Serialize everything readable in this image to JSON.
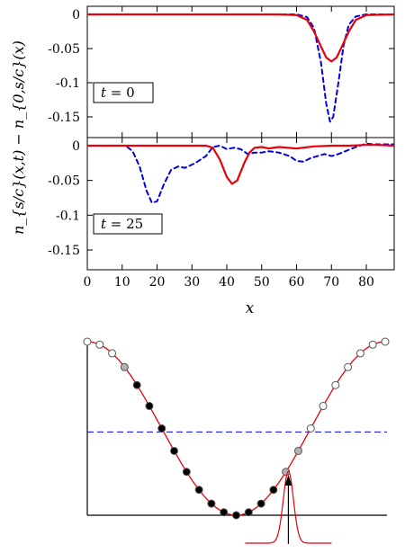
{
  "chart_data": [
    {
      "type": "line",
      "title": "",
      "xlabel": "x",
      "ylabel": "n_{s/c}(x,t) − n_{0,s/c}(x)",
      "xlim": [
        0,
        88
      ],
      "ylim": [
        -0.17,
        0.005
      ],
      "panels": [
        {
          "label_var": "t",
          "label_rest": " = 0",
          "series": [
            {
              "style": "solid",
              "color": "#e8000b",
              "points": [
                [
                  0,
                  0
                ],
                [
                  55,
                  0
                ],
                [
                  60,
                  -0.001
                ],
                [
                  63,
                  -0.008
                ],
                [
                  65,
                  -0.025
                ],
                [
                  67,
                  -0.047
                ],
                [
                  68.5,
                  -0.063
                ],
                [
                  70,
                  -0.069
                ],
                [
                  71.5,
                  -0.063
                ],
                [
                  73,
                  -0.047
                ],
                [
                  75,
                  -0.025
                ],
                [
                  77,
                  -0.008
                ],
                [
                  80,
                  -0.001
                ],
                [
                  88,
                  0
                ]
              ]
            },
            {
              "style": "dashed",
              "color": "#0000e6",
              "points": [
                [
                  0,
                  0
                ],
                [
                  60,
                  0
                ],
                [
                  63,
                  -0.004
                ],
                [
                  65,
                  -0.02
                ],
                [
                  67,
                  -0.07
                ],
                [
                  68.5,
                  -0.13
                ],
                [
                  69.6,
                  -0.157
                ],
                [
                  70.5,
                  -0.15
                ],
                [
                  72,
                  -0.1
                ],
                [
                  73.5,
                  -0.045
                ],
                [
                  75,
                  -0.015
                ],
                [
                  77,
                  -0.003
                ],
                [
                  80,
                  0
                ],
                [
                  88,
                  0
                ]
              ]
            }
          ]
        },
        {
          "label_var": "t",
          "label_rest": " = 25",
          "series": [
            {
              "style": "solid",
              "color": "#e8000b",
              "points": [
                [
                  0,
                  0
                ],
                [
                  34,
                  0
                ],
                [
                  36,
                  -0.003
                ],
                [
                  38,
                  -0.02
                ],
                [
                  40,
                  -0.045
                ],
                [
                  41.5,
                  -0.055
                ],
                [
                  43,
                  -0.05
                ],
                [
                  45,
                  -0.025
                ],
                [
                  46.5,
                  -0.01
                ],
                [
                  48,
                  -0.003
                ],
                [
                  50,
                  -0.002
                ],
                [
                  52,
                  -0.004
                ],
                [
                  55,
                  -0.002
                ],
                [
                  60,
                  -0.004
                ],
                [
                  65,
                  -0.001
                ],
                [
                  70,
                  0
                ],
                [
                  75,
                  0
                ],
                [
                  80,
                  0.001
                ],
                [
                  83,
                  0.001
                ],
                [
                  88,
                  0
                ]
              ]
            },
            {
              "style": "dashed",
              "color": "#0000e6",
              "points": [
                [
                  0,
                  0
                ],
                [
                  11,
                  0
                ],
                [
                  13,
                  -0.008
                ],
                [
                  15,
                  -0.03
                ],
                [
                  17,
                  -0.065
                ],
                [
                  18.5,
                  -0.082
                ],
                [
                  20,
                  -0.08
                ],
                [
                  22,
                  -0.055
                ],
                [
                  24,
                  -0.035
                ],
                [
                  26,
                  -0.03
                ],
                [
                  28,
                  -0.032
                ],
                [
                  31,
                  -0.025
                ],
                [
                  34,
                  -0.015
                ],
                [
                  36,
                  -0.002
                ],
                [
                  38,
                  0
                ],
                [
                  40,
                  -0.005
                ],
                [
                  42,
                  -0.003
                ],
                [
                  44,
                  -0.005
                ],
                [
                  46,
                  -0.012
                ],
                [
                  48,
                  -0.01
                ],
                [
                  50,
                  -0.01
                ],
                [
                  52,
                  -0.008
                ],
                [
                  55,
                  -0.01
                ],
                [
                  58,
                  -0.015
                ],
                [
                  60,
                  -0.022
                ],
                [
                  62,
                  -0.023
                ],
                [
                  64,
                  -0.018
                ],
                [
                  66,
                  -0.015
                ],
                [
                  68,
                  -0.012
                ],
                [
                  70,
                  -0.015
                ],
                [
                  72,
                  -0.012
                ],
                [
                  75,
                  -0.006
                ],
                [
                  77,
                  -0.002
                ],
                [
                  80,
                  0.003
                ],
                [
                  82,
                  0.002
                ],
                [
                  85,
                  0.002
                ],
                [
                  88,
                  0.002
                ]
              ]
            }
          ]
        }
      ],
      "xticks": [
        "0",
        "10",
        "20",
        "30",
        "40",
        "50",
        "60",
        "70",
        "80"
      ],
      "xtick_values": [
        0,
        10,
        20,
        30,
        40,
        50,
        60,
        70,
        80
      ],
      "yticks": [
        "0",
        "-0.05",
        "-0.1",
        "-0.15"
      ],
      "ytick_values": [
        0,
        -0.05,
        -0.1,
        -0.15
      ],
      "grid": false,
      "legend": "none"
    },
    {
      "type": "diagram",
      "title": "",
      "xlabel": "",
      "ylabel": "",
      "lattice_sites": 24,
      "site_phase_deg_start": 0,
      "site_phase_deg_step": 15,
      "dashed_line_level": 0.48,
      "curve_color": "#e8000b",
      "dashed_color": "#0000e6",
      "filled_site_indices": [
        4,
        5,
        6,
        7,
        8,
        9,
        10,
        11,
        12,
        13,
        14,
        15
      ],
      "grey_site_indices": [
        3,
        16,
        17
      ],
      "wavepacket_center_site": 16.2
    }
  ]
}
